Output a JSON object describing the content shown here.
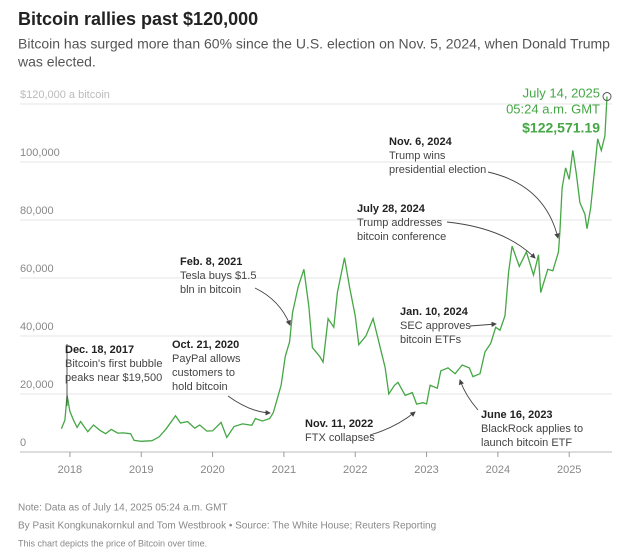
{
  "chart_data": {
    "type": "line",
    "title": "Bitcoin rallies past $120,000",
    "subtitle": [
      "Bitcoin has surged more than 60% since the U.S. election on Nov. 5, 2024, when Donald Trump",
      "was elected."
    ],
    "x": [
      2017.88,
      2017.93,
      2017.96,
      2018.0,
      2018.05,
      2018.1,
      2018.15,
      2018.25,
      2018.33,
      2018.42,
      2018.5,
      2018.58,
      2018.67,
      2018.75,
      2018.85,
      2018.9,
      2019.0,
      2019.15,
      2019.25,
      2019.35,
      2019.48,
      2019.55,
      2019.65,
      2019.75,
      2019.82,
      2019.92,
      2020.0,
      2020.12,
      2020.2,
      2020.3,
      2020.42,
      2020.55,
      2020.6,
      2020.7,
      2020.8,
      2020.85,
      2020.9,
      2020.96,
      2021.02,
      2021.08,
      2021.12,
      2021.2,
      2021.28,
      2021.35,
      2021.4,
      2021.5,
      2021.55,
      2021.62,
      2021.7,
      2021.75,
      2021.85,
      2021.92,
      2022.0,
      2022.05,
      2022.15,
      2022.25,
      2022.33,
      2022.42,
      2022.47,
      2022.55,
      2022.6,
      2022.7,
      2022.8,
      2022.86,
      2022.95,
      2023.0,
      2023.05,
      2023.15,
      2023.2,
      2023.3,
      2023.4,
      2023.5,
      2023.6,
      2023.65,
      2023.75,
      2023.82,
      2023.9,
      2023.97,
      2024.03,
      2024.1,
      2024.15,
      2024.2,
      2024.3,
      2024.4,
      2024.5,
      2024.57,
      2024.6,
      2024.7,
      2024.77,
      2024.85,
      2024.87,
      2024.9,
      2024.95,
      2025.0,
      2025.05,
      2025.1,
      2025.15,
      2025.22,
      2025.25,
      2025.3,
      2025.35,
      2025.4,
      2025.45,
      2025.5,
      2025.53
    ],
    "series": [
      {
        "name": "Bitcoin",
        "color": "#45a745",
        "values": [
          8000,
          11000,
          19500,
          14000,
          11000,
          8500,
          10500,
          7000,
          9300,
          7500,
          6300,
          7800,
          6500,
          6600,
          6300,
          4000,
          3700,
          3900,
          5200,
          8000,
          12500,
          10000,
          10500,
          8200,
          9300,
          7200,
          7300,
          10200,
          5000,
          8800,
          9700,
          9200,
          11500,
          10700,
          11500,
          13500,
          17800,
          23000,
          33000,
          38000,
          48000,
          57000,
          63000,
          50000,
          36000,
          33000,
          31000,
          46000,
          43000,
          55000,
          67000,
          57000,
          47000,
          37000,
          40000,
          46000,
          38000,
          29000,
          20000,
          23000,
          24000,
          19500,
          20500,
          16500,
          17000,
          16600,
          23000,
          22000,
          28000,
          29000,
          27000,
          30000,
          29000,
          26000,
          27000,
          34500,
          37500,
          43000,
          42000,
          47000,
          62000,
          71000,
          64000,
          69000,
          61000,
          68000,
          55000,
          63000,
          62500,
          69000,
          76000,
          91000,
          98000,
          94000,
          104000,
          96000,
          86000,
          82000,
          77000,
          84000,
          96000,
          108000,
          104000,
          109000,
          122571.19
        ]
      }
    ],
    "xlim": [
      2017.3,
      2025.6
    ],
    "xticks": [
      2018,
      2019,
      2020,
      2021,
      2022,
      2023,
      2024,
      2025
    ],
    "ylim": [
      0,
      120000
    ],
    "yticks": [
      0,
      {
        "value": 20000,
        "label": "20,000"
      },
      {
        "value": 40000,
        "label": "40,000"
      },
      {
        "value": 60000,
        "label": "60,000"
      },
      {
        "value": 80000,
        "label": "80,000"
      },
      {
        "value": 100000,
        "label": "100,000"
      },
      {
        "value": 120000,
        "label": "$120,000 a bitcoin"
      }
    ],
    "grid": true,
    "end_label": {
      "date": "July 14, 2025",
      "time": "05:24 a.m. GMT",
      "value_label": "$122,571.19"
    },
    "annotations": [
      {
        "date": "Dec. 18, 2017",
        "lines": [
          "Bitcoin's first bubble",
          "peaks near $19,500"
        ]
      },
      {
        "date": "Oct. 21, 2020",
        "lines": [
          "PayPal allows",
          "customers to",
          "hold bitcoin"
        ]
      },
      {
        "date": "Feb. 8, 2021",
        "lines": [
          "Tesla buys $1.5",
          "bln in bitcoin"
        ]
      },
      {
        "date": "Nov. 11, 2022",
        "lines": [
          "FTX collapses"
        ]
      },
      {
        "date": "Jan. 10, 2024",
        "lines": [
          "SEC approves",
          "bitcoin ETFs"
        ]
      },
      {
        "date": "June 16, 2023",
        "lines": [
          "BlackRock applies to",
          "launch bitcoin ETF"
        ]
      },
      {
        "date": "July 28, 2024",
        "lines": [
          "Trump addresses",
          "bitcoin conference"
        ]
      },
      {
        "date": "Nov. 6, 2024",
        "lines": [
          "Trump wins",
          "presidential election"
        ]
      }
    ],
    "notes": [
      "Note: Data as of July 14, 2025 05:24 a.m. GMT",
      "By Pasit Kongkunakornkul and Tom Westbrook • Source: The White House; Reuters Reporting",
      "This chart depicts the price of Bitcoin over time."
    ]
  }
}
